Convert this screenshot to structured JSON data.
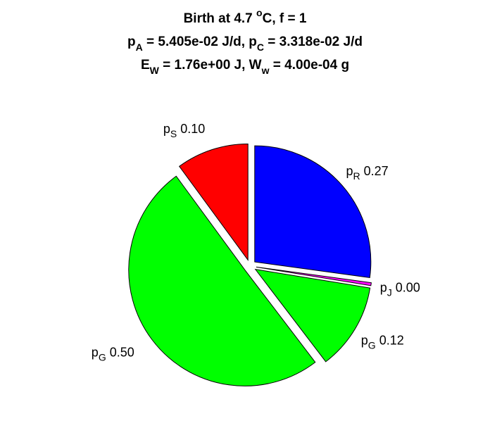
{
  "chart_data": {
    "type": "pie",
    "title": [
      [
        {
          "text": "Birth at 4.7 "
        },
        {
          "sup": "o"
        },
        {
          "text": "C, f = 1"
        }
      ],
      [
        {
          "text": "p"
        },
        {
          "sub": "A"
        },
        {
          "text": " = 5.405e-02 J/d, p"
        },
        {
          "sub": "C"
        },
        {
          "text": " = 3.318e-02 J/d"
        }
      ],
      [
        {
          "text": "E"
        },
        {
          "sub": "W"
        },
        {
          "text": " = 1.76e+00 J, W"
        },
        {
          "sub": "w"
        },
        {
          "text": " = 4.00e-04 g"
        }
      ]
    ],
    "categories": [
      {
        "base": "p",
        "sub": "R"
      },
      {
        "base": "p",
        "sub": "J"
      },
      {
        "base": "p",
        "sub": "G"
      },
      {
        "base": "p",
        "sub": "G"
      },
      {
        "base": "p",
        "sub": "S"
      }
    ],
    "values": [
      0.27,
      0.004,
      0.12,
      0.5,
      0.1
    ],
    "value_labels": [
      "0.27",
      "0.00",
      "0.12",
      "0.50",
      "0.10"
    ],
    "colors": [
      "#0000ff",
      "#ff00ff",
      "#00ff00",
      "#00ff00",
      "#ff0000"
    ]
  }
}
